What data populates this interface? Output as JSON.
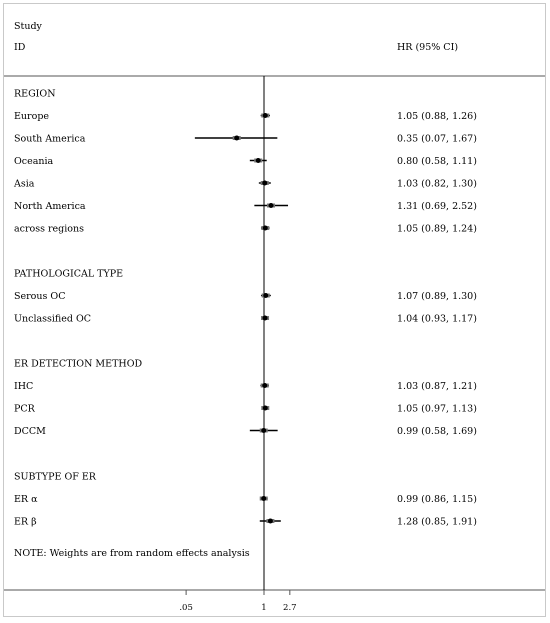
{
  "header": {
    "col_study": "Study",
    "col_id": "ID",
    "col_hr": "HR (95% CI)"
  },
  "note": "NOTE: Weights are from random effects analysis",
  "chart_data": {
    "type": "forest",
    "effect_label": "HR (95% CI)",
    "x_scale": "log",
    "x_ticks": [
      {
        "value": 0.05,
        "label": ".05"
      },
      {
        "value": 1,
        "label": "1"
      },
      {
        "value": 2.7,
        "label": "2.7"
      }
    ],
    "reference_line": 1,
    "groups": [
      {
        "label": "REGION",
        "rows": [
          {
            "label": "Europe",
            "hr": 1.05,
            "lo": 0.88,
            "hi": 1.26,
            "ci_text": "1.05 (0.88, 1.26)"
          },
          {
            "label": "South America",
            "hr": 0.35,
            "lo": 0.07,
            "hi": 1.67,
            "ci_text": "0.35 (0.07, 1.67)"
          },
          {
            "label": "Oceania",
            "hr": 0.8,
            "lo": 0.58,
            "hi": 1.11,
            "ci_text": "0.80 (0.58, 1.11)"
          },
          {
            "label": "Asia",
            "hr": 1.03,
            "lo": 0.82,
            "hi": 1.3,
            "ci_text": "1.03 (0.82, 1.30)"
          },
          {
            "label": "North America",
            "hr": 1.31,
            "lo": 0.69,
            "hi": 2.52,
            "ci_text": "1.31 (0.69, 2.52)"
          },
          {
            "label": "across regions",
            "hr": 1.05,
            "lo": 0.89,
            "hi": 1.24,
            "ci_text": "1.05 (0.89, 1.24)"
          }
        ]
      },
      {
        "label": "PATHOLOGICAL TYPE",
        "rows": [
          {
            "label": "Serous OC",
            "hr": 1.07,
            "lo": 0.89,
            "hi": 1.3,
            "ci_text": "1.07 (0.89, 1.30)"
          },
          {
            "label": "Unclassified OC",
            "hr": 1.04,
            "lo": 0.93,
            "hi": 1.17,
            "ci_text": "1.04 (0.93, 1.17)"
          }
        ]
      },
      {
        "label": "ER DETECTION METHOD",
        "rows": [
          {
            "label": "IHC",
            "hr": 1.03,
            "lo": 0.87,
            "hi": 1.21,
            "ci_text": "1.03 (0.87, 1.21)"
          },
          {
            "label": "PCR",
            "hr": 1.05,
            "lo": 0.97,
            "hi": 1.13,
            "ci_text": "1.05 (0.97, 1.13)"
          },
          {
            "label": "DCCM",
            "hr": 0.99,
            "lo": 0.58,
            "hi": 1.69,
            "ci_text": "0.99 (0.58, 1.69)"
          }
        ]
      },
      {
        "label": "SUBTYPE OF ER",
        "rows": [
          {
            "label": "ER α",
            "hr": 0.99,
            "lo": 0.86,
            "hi": 1.15,
            "ci_text": "0.99 (0.86, 1.15)"
          },
          {
            "label": "ER β",
            "hr": 1.28,
            "lo": 0.85,
            "hi": 1.91,
            "ci_text": "1.28 (0.85, 1.91)"
          }
        ]
      }
    ]
  }
}
